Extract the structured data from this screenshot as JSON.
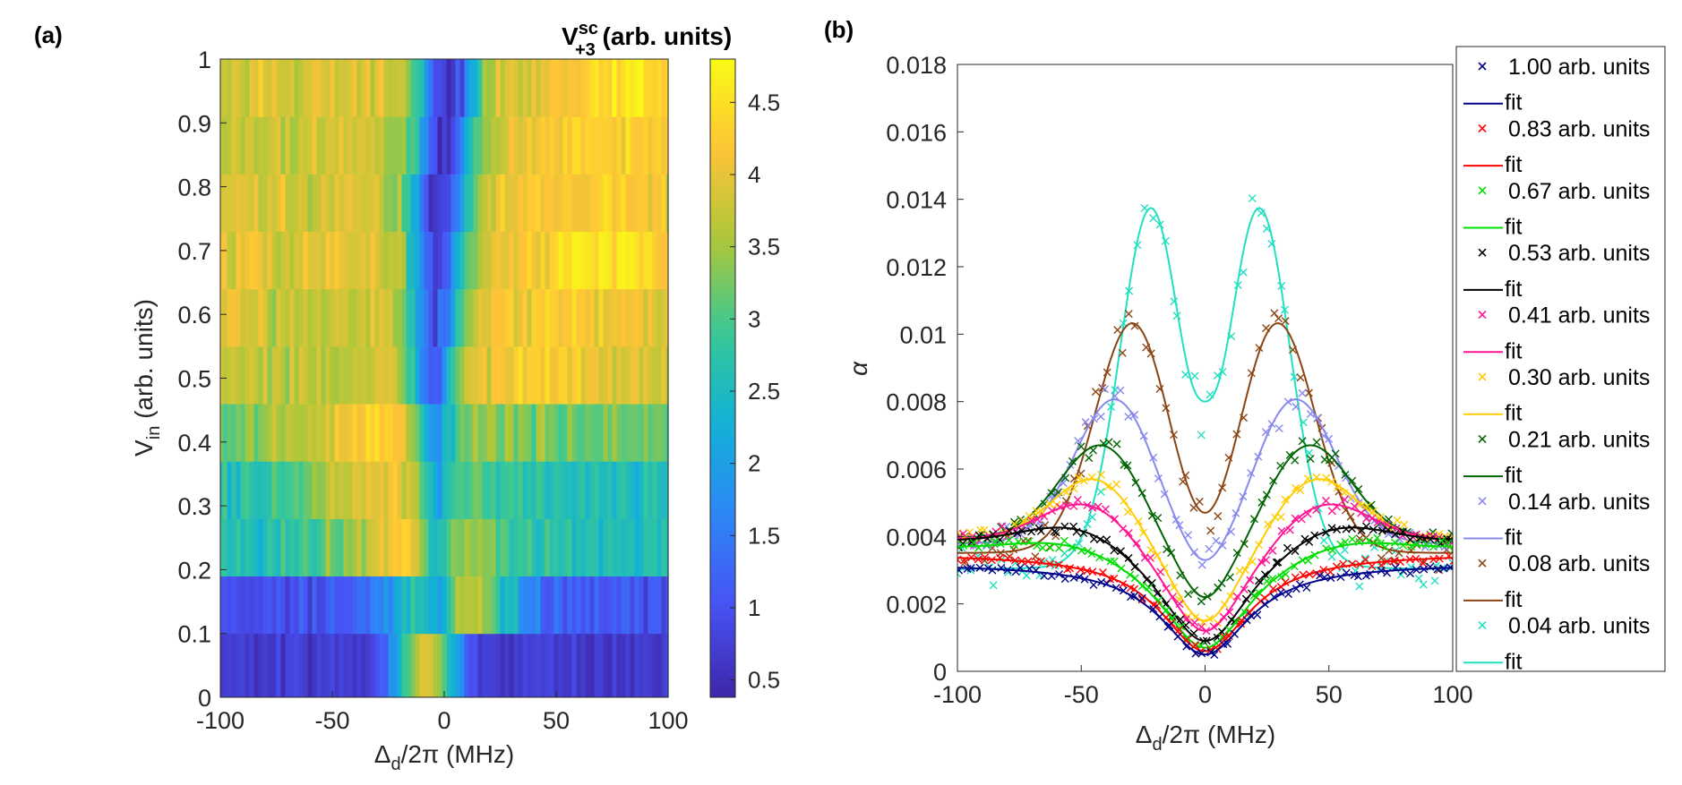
{
  "panels": {
    "a": {
      "label": "(a)",
      "xlabel_main": "Δ",
      "xlabel_sub": "d",
      "xlabel_rest": "/2π (MHz)",
      "ylabel_main": "V",
      "ylabel_sub": "in",
      "ylabel_rest": " (arb. units)",
      "colorbar_title_main": "V",
      "colorbar_title_sup": "sc",
      "colorbar_title_sub": "+3",
      "colorbar_title_rest": " (arb. units)"
    },
    "b": {
      "label": "(b)",
      "ylabel": "α",
      "xlabel_main": "Δ",
      "xlabel_sub": "d",
      "xlabel_rest": "/2π (MHz)"
    }
  },
  "chart_data": [
    {
      "type": "heatmap",
      "panel": "(a)",
      "xlim": [
        -100,
        100
      ],
      "ylim": [
        0,
        1
      ],
      "xticks": [
        -100,
        -50,
        0,
        50,
        100
      ],
      "yticks": [
        0,
        0.1,
        0.2,
        0.3,
        0.4,
        0.5,
        0.6,
        0.7,
        0.8,
        0.9,
        1
      ],
      "ytick_labels": [
        "0",
        "0.1",
        "0.2",
        "0.3",
        "0.4",
        "0.5",
        "0.6",
        "0.7",
        "0.8",
        "0.9",
        "1"
      ],
      "colorbar": {
        "clim": [
          0.38,
          4.8
        ],
        "ticks": [
          0.5,
          1,
          1.5,
          2,
          2.5,
          3,
          3.5,
          4,
          4.5
        ],
        "tick_labels": [
          "0.5",
          "1",
          "1.5",
          "2",
          "2.5",
          "3",
          "3.5",
          "4",
          "4.5"
        ],
        "colormap": "parula"
      },
      "rows": [
        {
          "v_in_low": 0.0,
          "v_in_high": 0.1,
          "baseline": 0.7,
          "dip_center": -5,
          "peak_center": -8,
          "peak_height": 3.3,
          "peak_width": 14,
          "dip_depth": 0.0,
          "dip_width": 10
        },
        {
          "v_in_low": 0.1,
          "v_in_high": 0.19,
          "baseline": 1.0,
          "dip_center": -2,
          "peak_center": 5,
          "peak_height": 2.8,
          "peak_width": 28,
          "dip_depth": 1.8,
          "dip_width": 6
        },
        {
          "v_in_low": 0.19,
          "v_in_high": 0.28,
          "baseline": 2.6,
          "dip_center": -3,
          "peak_center": -15,
          "peak_height": 1.6,
          "peak_width": 35,
          "dip_depth": 1.6,
          "dip_width": 7
        },
        {
          "v_in_low": 0.28,
          "v_in_high": 0.37,
          "baseline": 2.6,
          "dip_center": -4,
          "peak_center": -25,
          "peak_height": 1.4,
          "peak_width": 40,
          "dip_depth": 1.6,
          "dip_width": 8
        },
        {
          "v_in_low": 0.37,
          "v_in_high": 0.46,
          "baseline": 3.2,
          "dip_center": -4,
          "peak_center": -30,
          "peak_height": 1.0,
          "peak_width": 40,
          "dip_depth": 2.0,
          "dip_width": 9
        },
        {
          "v_in_low": 0.46,
          "v_in_high": 0.55,
          "baseline": 3.7,
          "dip_center": -5,
          "peak_center": 40,
          "peak_height": 0.5,
          "peak_width": 40,
          "dip_depth": 2.6,
          "dip_width": 10
        },
        {
          "v_in_low": 0.55,
          "v_in_high": 0.64,
          "baseline": 3.8,
          "dip_center": -4,
          "peak_center": 60,
          "peak_height": 0.4,
          "peak_width": 40,
          "dip_depth": 2.9,
          "dip_width": 11
        },
        {
          "v_in_low": 0.64,
          "v_in_high": 0.73,
          "baseline": 3.9,
          "dip_center": -3,
          "peak_center": 70,
          "peak_height": 0.7,
          "peak_width": 30,
          "dip_depth": 3.1,
          "dip_width": 12
        },
        {
          "v_in_low": 0.73,
          "v_in_high": 0.82,
          "baseline": 3.8,
          "dip_center": -2,
          "peak_center": 60,
          "peak_height": 0.5,
          "peak_width": 40,
          "dip_depth": 3.2,
          "dip_width": 13
        },
        {
          "v_in_low": 0.82,
          "v_in_high": 0.91,
          "baseline": 3.8,
          "dip_center": 0,
          "peak_center": 70,
          "peak_height": 0.5,
          "peak_width": 40,
          "dip_depth": 3.3,
          "dip_width": 13
        },
        {
          "v_in_low": 0.91,
          "v_in_high": 1.0,
          "baseline": 3.9,
          "dip_center": 2,
          "peak_center": 80,
          "peak_height": 0.6,
          "peak_width": 30,
          "dip_depth": 3.4,
          "dip_width": 13
        }
      ]
    },
    {
      "type": "scatter",
      "panel": "(b)",
      "xlim": [
        -100,
        100
      ],
      "ylim": [
        0,
        0.018
      ],
      "xticks": [
        -100,
        -50,
        0,
        50,
        100
      ],
      "yticks": [
        0,
        0.002,
        0.004,
        0.006,
        0.008,
        0.01,
        0.012,
        0.014,
        0.016,
        0.018
      ],
      "ytick_labels": [
        "0",
        "0.002",
        "0.004",
        "0.006",
        "0.008",
        "0.01",
        "0.012",
        "0.014",
        "0.016",
        "0.018"
      ],
      "legend_position": "outside-right",
      "fit_label": "fit",
      "series": [
        {
          "name": "1.00 arb. units",
          "color": "#00008B",
          "background": 0.0032,
          "peak": 0.0,
          "peak_pos": 0,
          "peak_width": 30,
          "dip_depth": 0.0027,
          "dip_width": 22,
          "center_value": 0.0005
        },
        {
          "name": "0.83 arb. units",
          "color": "#FF0000",
          "background": 0.0035,
          "peak": 0.0,
          "peak_pos": 0,
          "peak_width": 30,
          "dip_depth": 0.0029,
          "dip_width": 22,
          "center_value": 0.0006
        },
        {
          "name": "0.67 arb. units",
          "color": "#00DD00",
          "background": 0.0038,
          "peak": 0.0004,
          "peak_pos": 55,
          "peak_width": 30,
          "dip_depth": 0.0032,
          "dip_width": 22,
          "center_value": 0.0007
        },
        {
          "name": "0.53 arb. units",
          "color": "#000000",
          "background": 0.004,
          "peak": 0.0008,
          "peak_pos": 50,
          "peak_width": 30,
          "dip_depth": 0.0036,
          "dip_width": 22,
          "center_value": 0.0009
        },
        {
          "name": "0.41 arb. units",
          "color": "#FF1493",
          "background": 0.004,
          "peak": 0.0016,
          "peak_pos": 45,
          "peak_width": 28,
          "dip_depth": 0.0042,
          "dip_width": 20,
          "center_value": 0.0012
        },
        {
          "name": "0.30 arb. units",
          "color": "#FFCC00",
          "background": 0.004,
          "peak": 0.0024,
          "peak_pos": 42,
          "peak_width": 26,
          "dip_depth": 0.0047,
          "dip_width": 18,
          "center_value": 0.0015
        },
        {
          "name": "0.21 arb. units",
          "color": "#006400",
          "background": 0.004,
          "peak": 0.0033,
          "peak_pos": 40,
          "peak_width": 25,
          "dip_depth": 0.005,
          "dip_width": 15,
          "center_value": 0.0022
        },
        {
          "name": "0.14 arb. units",
          "color": "#8888EE",
          "background": 0.0038,
          "peak": 0.0048,
          "peak_pos": 35,
          "peak_width": 24,
          "dip_depth": 0.0052,
          "dip_width": 12,
          "center_value": 0.0033
        },
        {
          "name": "0.08 arb. units",
          "color": "#8B4513",
          "background": 0.0035,
          "peak": 0.0075,
          "peak_pos": 28,
          "peak_width": 22,
          "dip_depth": 0.006,
          "dip_width": 10,
          "center_value": 0.0047
        },
        {
          "name": "0.04 arb. units",
          "color": "#20E0C0",
          "background": 0.003,
          "peak": 0.0115,
          "peak_pos": 21,
          "peak_width": 18,
          "dip_depth": 0.007,
          "dip_width": 8,
          "center_value": 0.008
        }
      ]
    }
  ]
}
